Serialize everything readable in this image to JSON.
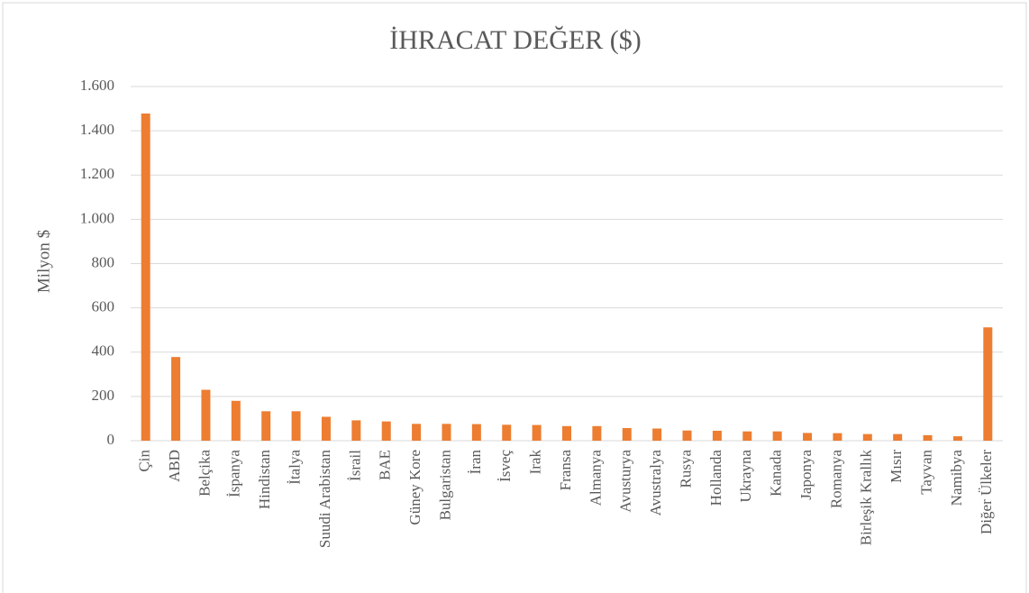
{
  "chart_data": {
    "type": "bar",
    "title": "İHRACAT  DEĞER ($)",
    "y_label": "Milyon $",
    "categories": [
      "Çin",
      "ABD",
      "Belçika",
      "İspanya",
      "Hindistan",
      "İtalya",
      "Suudi Arabistan",
      "İsrail",
      "BAE",
      "Güney Kore",
      "Bulgaristan",
      "İran",
      "İsveç",
      "Irak",
      "Fransa",
      "Almanya",
      "Avusturya",
      "Avustralya",
      "Rusya",
      "Hollanda",
      "Ukrayna",
      "Kanada",
      "Japonya",
      "Romanya",
      "Birleşik Krallık",
      "Mısır",
      "Tayvan",
      "Namibya",
      "Diğer Ülkeler"
    ],
    "values": [
      1478,
      378,
      230,
      180,
      133,
      133,
      108,
      92,
      87,
      76,
      76,
      75,
      72,
      71,
      66,
      66,
      57,
      55,
      46,
      45,
      42,
      42,
      35,
      34,
      30,
      30,
      25,
      20,
      512
    ],
    "color": "#ed7d31",
    "ylim": [
      0,
      1600
    ],
    "yticks": [
      0,
      200,
      400,
      600,
      800,
      {
        "value": 1000,
        "label": "1.000"
      },
      {
        "value": 1200,
        "label": "1.200"
      },
      {
        "value": 1400,
        "label": "1.400"
      },
      {
        "value": 1600,
        "label": "1.600"
      }
    ],
    "grid": true
  }
}
